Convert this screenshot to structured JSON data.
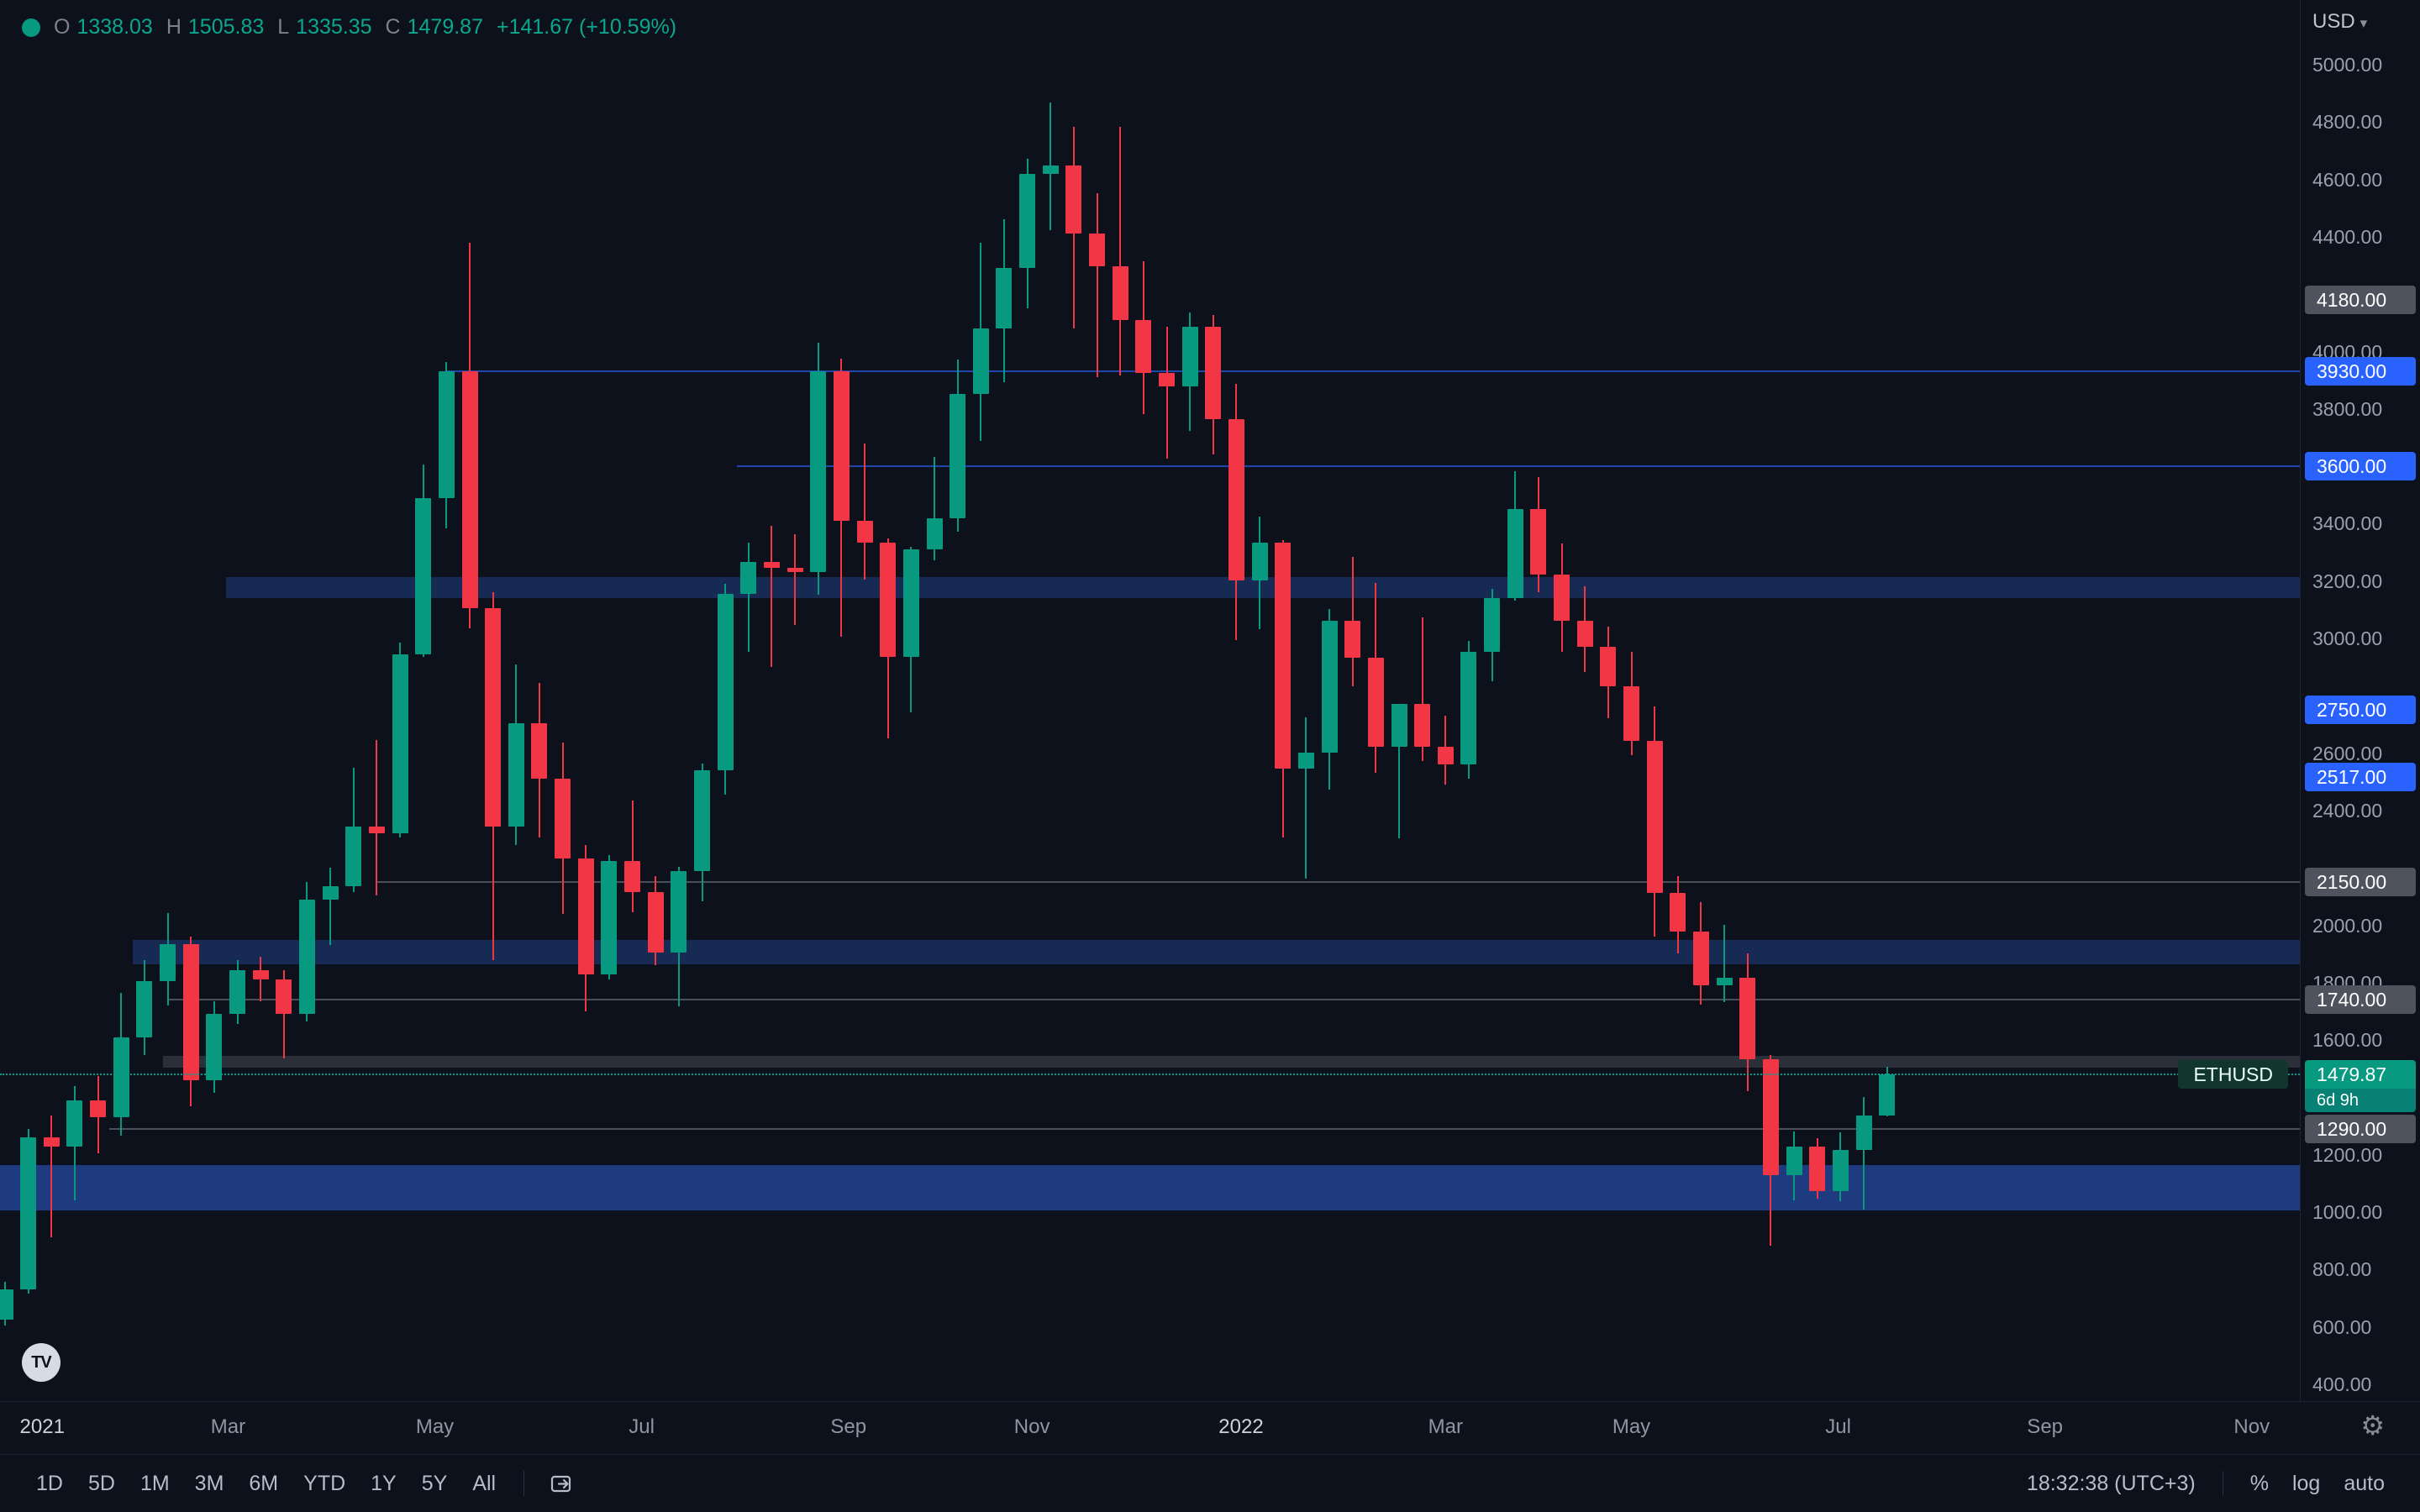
{
  "icons": {
    "caret_down": "▾",
    "gear": "⚙",
    "logo_monogram": "TV"
  },
  "header": {
    "ohlc": {
      "o_label": "O",
      "o_value": "1338.03",
      "h_label": "H",
      "h_value": "1505.83",
      "l_label": "L",
      "l_value": "1335.35",
      "c_label": "C",
      "c_value": "1479.87",
      "change": "+141.67 (+10.59%)"
    },
    "currency_selector": {
      "label": "USD"
    }
  },
  "toolbar": {
    "ranges": [
      "1D",
      "5D",
      "1M",
      "3M",
      "6M",
      "YTD",
      "1Y",
      "5Y",
      "All"
    ],
    "clock": "18:32:38 (UTC+3)",
    "percent_label": "%",
    "log_label": "log",
    "auto_label": "auto"
  },
  "chart_data": {
    "type": "candlestick",
    "symbol": "ETHUSD",
    "y_axis": {
      "min": 400,
      "max": 5000,
      "tick_step": 200,
      "ticks": [
        {
          "value": 5000,
          "label": "5000.00"
        },
        {
          "value": 4800,
          "label": "4800.00"
        },
        {
          "value": 4600,
          "label": "4600.00"
        },
        {
          "value": 4400,
          "label": "4400.00"
        },
        {
          "value": 4000,
          "label": "4000.00"
        },
        {
          "value": 3800,
          "label": "3800.00"
        },
        {
          "value": 3400,
          "label": "3400.00"
        },
        {
          "value": 3200,
          "label": "3200.00"
        },
        {
          "value": 3000,
          "label": "3000.00"
        },
        {
          "value": 2600,
          "label": "2600.00"
        },
        {
          "value": 2400,
          "label": "2400.00"
        },
        {
          "value": 2000,
          "label": "2000.00"
        },
        {
          "value": 1800,
          "label": "1800.00"
        },
        {
          "value": 1600,
          "label": "1600.00"
        },
        {
          "value": 1200,
          "label": "1200.00"
        },
        {
          "value": 1000,
          "label": "1000.00"
        },
        {
          "value": 800,
          "label": "800.00"
        },
        {
          "value": 600,
          "label": "600.00"
        },
        {
          "value": 400,
          "label": "400.00"
        }
      ]
    },
    "x_axis": {
      "labels": [
        {
          "text": "2021",
          "i": 1.6,
          "year": true
        },
        {
          "text": "Mar",
          "i": 9.6
        },
        {
          "text": "May",
          "i": 18.5
        },
        {
          "text": "Jul",
          "i": 27.4
        },
        {
          "text": "Sep",
          "i": 36.3
        },
        {
          "text": "Nov",
          "i": 44.2
        },
        {
          "text": "2022",
          "i": 53.2,
          "year": true
        },
        {
          "text": "Mar",
          "i": 62.0
        },
        {
          "text": "May",
          "i": 70.0
        },
        {
          "text": "Jul",
          "i": 78.9
        },
        {
          "text": "Sep",
          "i": 87.8
        },
        {
          "text": "Nov",
          "i": 96.7
        }
      ]
    },
    "levels": [
      {
        "label": "4180.00",
        "price": 4180,
        "style": "gray",
        "line": false
      },
      {
        "label": "3930.00",
        "price": 3930,
        "style": "blue",
        "line": true,
        "from_i": 19
      },
      {
        "label": "3600.00",
        "price": 3600,
        "style": "blue",
        "line": true,
        "from_i": 31.5
      },
      {
        "label": "2750.00",
        "price": 2750,
        "style": "blue",
        "line": false
      },
      {
        "label": "2517.00",
        "price": 2517,
        "style": "blue",
        "line": false
      },
      {
        "label": "2150.00",
        "price": 2150,
        "style": "gray",
        "line": true,
        "from_i": 16
      },
      {
        "label": "1740.00",
        "price": 1740,
        "style": "gray",
        "line": true,
        "from_i": 7
      },
      {
        "label": "1290.00",
        "price": 1290,
        "style": "gray",
        "line": true,
        "from_i": 4.5
      }
    ],
    "bands": [
      {
        "from": 3140,
        "to": 3215,
        "from_i": 9.5,
        "tone": "blue"
      },
      {
        "from": 1865,
        "to": 1950,
        "from_i": 5.5,
        "tone": "blue"
      },
      {
        "from": 1005,
        "to": 1165,
        "from_i": -0.5,
        "tone": "blue_strong"
      },
      {
        "from": 1505,
        "to": 1545,
        "from_i": 6.8,
        "tone": "light"
      }
    ],
    "current_price": {
      "price": 1479.87,
      "label": "1479.87",
      "countdown": "6d 9h",
      "symbol_tag": "ETHUSD"
    },
    "candles": [
      [
        626,
        758,
        605,
        730
      ],
      [
        730,
        1290,
        716,
        1260
      ],
      [
        1260,
        1338,
        912,
        1228
      ],
      [
        1228,
        1440,
        1042,
        1390
      ],
      [
        1390,
        1475,
        1205,
        1330
      ],
      [
        1330,
        1765,
        1267,
        1610
      ],
      [
        1610,
        1878,
        1548,
        1805
      ],
      [
        1805,
        2042,
        1722,
        1935
      ],
      [
        1935,
        1960,
        1370,
        1460
      ],
      [
        1460,
        1735,
        1415,
        1690
      ],
      [
        1690,
        1880,
        1655,
        1845
      ],
      [
        1845,
        1890,
        1735,
        1810
      ],
      [
        1810,
        1845,
        1537,
        1690
      ],
      [
        1690,
        2150,
        1665,
        2090
      ],
      [
        2090,
        2200,
        1930,
        2135
      ],
      [
        2135,
        2548,
        2115,
        2345
      ],
      [
        2345,
        2645,
        2105,
        2320
      ],
      [
        2320,
        2985,
        2305,
        2945
      ],
      [
        2945,
        3605,
        2935,
        3490
      ],
      [
        3490,
        3962,
        3385,
        3930
      ],
      [
        3930,
        4380,
        3035,
        3105
      ],
      [
        3105,
        3160,
        1880,
        2345
      ],
      [
        2345,
        2910,
        2280,
        2705
      ],
      [
        2705,
        2845,
        2305,
        2510
      ],
      [
        2510,
        2638,
        2040,
        2232
      ],
      [
        2232,
        2280,
        1700,
        1830
      ],
      [
        1830,
        2245,
        1810,
        2225
      ],
      [
        2225,
        2435,
        2045,
        2115
      ],
      [
        2115,
        2172,
        1862,
        1905
      ],
      [
        1905,
        2205,
        1718,
        2190
      ],
      [
        2190,
        2565,
        2085,
        2540
      ],
      [
        2540,
        3190,
        2455,
        3155
      ],
      [
        3155,
        3335,
        2952,
        3268
      ],
      [
        3268,
        3392,
        2902,
        3245
      ],
      [
        3245,
        3362,
        3048,
        3230
      ],
      [
        3230,
        4030,
        3152,
        3930
      ],
      [
        3930,
        3975,
        3005,
        3410
      ],
      [
        3410,
        3678,
        3205,
        3335
      ],
      [
        3335,
        3348,
        2652,
        2935
      ],
      [
        2935,
        3320,
        2742,
        3310
      ],
      [
        3310,
        3632,
        3272,
        3418
      ],
      [
        3418,
        3972,
        3372,
        3852
      ],
      [
        3852,
        4378,
        3688,
        4082
      ],
      [
        4082,
        4462,
        3892,
        4292
      ],
      [
        4292,
        4672,
        4152,
        4618
      ],
      [
        4618,
        4868,
        4422,
        4648
      ],
      [
        4648,
        4782,
        4082,
        4412
      ],
      [
        4412,
        4552,
        3912,
        4297
      ],
      [
        4297,
        4782,
        3917,
        4111
      ],
      [
        4111,
        4315,
        3782,
        3925
      ],
      [
        3925,
        4085,
        3628,
        3878
      ],
      [
        3878,
        4135,
        3722,
        4085
      ],
      [
        4085,
        4128,
        3642,
        3765
      ],
      [
        3765,
        3888,
        2995,
        3202
      ],
      [
        3202,
        3425,
        3032,
        3335
      ],
      [
        3335,
        3342,
        2305,
        2545
      ],
      [
        2545,
        2725,
        2162,
        2602
      ],
      [
        2602,
        3102,
        2472,
        3062
      ],
      [
        3062,
        3285,
        2832,
        2932
      ],
      [
        2932,
        3192,
        2532,
        2622
      ],
      [
        2622,
        2772,
        2302,
        2772
      ],
      [
        2772,
        3072,
        2572,
        2622
      ],
      [
        2622,
        2732,
        2492,
        2562
      ],
      [
        2562,
        2992,
        2512,
        2952
      ],
      [
        2952,
        3172,
        2852,
        3142
      ],
      [
        3142,
        3582,
        3132,
        3452
      ],
      [
        3452,
        3562,
        3162,
        3222
      ],
      [
        3222,
        3332,
        2952,
        3062
      ],
      [
        3062,
        3182,
        2882,
        2972
      ],
      [
        2972,
        3042,
        2722,
        2832
      ],
      [
        2832,
        2952,
        2592,
        2642
      ],
      [
        2642,
        2762,
        1962,
        2112
      ],
      [
        2112,
        2172,
        1902,
        1978
      ],
      [
        1978,
        2082,
        1722,
        1792
      ],
      [
        1792,
        2002,
        1732,
        1818
      ],
      [
        1818,
        1902,
        1422,
        1532
      ],
      [
        1532,
        1548,
        882,
        1128
      ],
      [
        1128,
        1282,
        1042,
        1228
      ],
      [
        1228,
        1258,
        1048,
        1072
      ],
      [
        1072,
        1278,
        1038,
        1218
      ],
      [
        1218,
        1402,
        1008,
        1338
      ],
      [
        1338.03,
        1505.83,
        1335.35,
        1479.87
      ]
    ]
  }
}
